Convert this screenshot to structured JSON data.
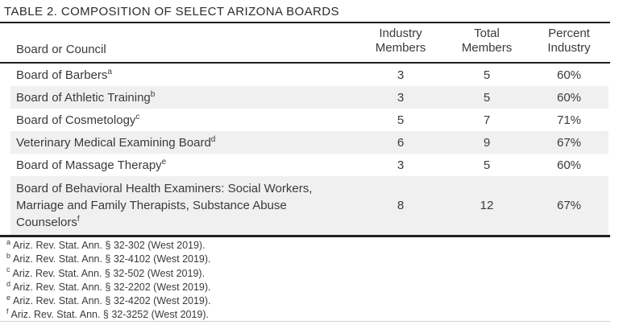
{
  "title": "TABLE 2. COMPOSITION OF SELECT ARIZONA BOARDS",
  "table": {
    "headers": {
      "col1": "Board or Council",
      "col2": "Industry\nMembers",
      "col3": "Total\nMembers",
      "col4": "Percent\nIndustry"
    },
    "rows": [
      {
        "name": "Board of Barbers",
        "marker": "a",
        "industry": "3",
        "total": "5",
        "percent": "60%"
      },
      {
        "name": "Board of Athletic Training",
        "marker": "b",
        "industry": "3",
        "total": "5",
        "percent": "60%"
      },
      {
        "name": "Board of Cosmetology",
        "marker": "c",
        "industry": "5",
        "total": "7",
        "percent": "71%"
      },
      {
        "name": "Veterinary Medical Examining Board",
        "marker": "d",
        "industry": "6",
        "total": "9",
        "percent": "67%"
      },
      {
        "name": "Board of Massage Therapy",
        "marker": "e",
        "industry": "3",
        "total": "5",
        "percent": "60%"
      },
      {
        "name": "Board of Behavioral Health Examiners: Social Workers, Marriage and Family Therapists, Substance Abuse Counselors",
        "marker": "f",
        "industry": "8",
        "total": "12",
        "percent": "67%"
      }
    ]
  },
  "footnotes": [
    {
      "marker": "a",
      "text": "Ariz. Rev. Stat. Ann. § 32-302 (West 2019)."
    },
    {
      "marker": "b",
      "text": "Ariz. Rev. Stat. Ann. § 32-4102 (West 2019)."
    },
    {
      "marker": "c",
      "text": "Ariz. Rev. Stat. Ann. § 32-502 (West 2019)."
    },
    {
      "marker": "d",
      "text": "Ariz. Rev. Stat. Ann. § 32-2202 (West 2019)."
    },
    {
      "marker": "e",
      "text": "Ariz. Rev. Stat. Ann. § 32-4202 (West 2019)."
    },
    {
      "marker": "f",
      "text": "Ariz. Rev. Stat. Ann. § 32-3252 (West 2019)."
    }
  ],
  "colors": {
    "row_shading": "#f0f0f0",
    "rule": "#1f1f1f",
    "text": "#3a3a3a"
  }
}
